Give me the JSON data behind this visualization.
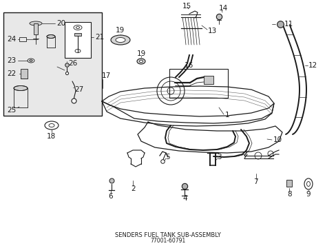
{
  "title": "SENDERS FUEL TANK SUB-ASSEMBLY",
  "part_number": "77001-60791",
  "bg": "#ffffff",
  "lc": "#1a1a1a",
  "inset_bg": "#e8e8e8",
  "fig_w": 4.89,
  "fig_h": 3.6,
  "dpi": 100
}
